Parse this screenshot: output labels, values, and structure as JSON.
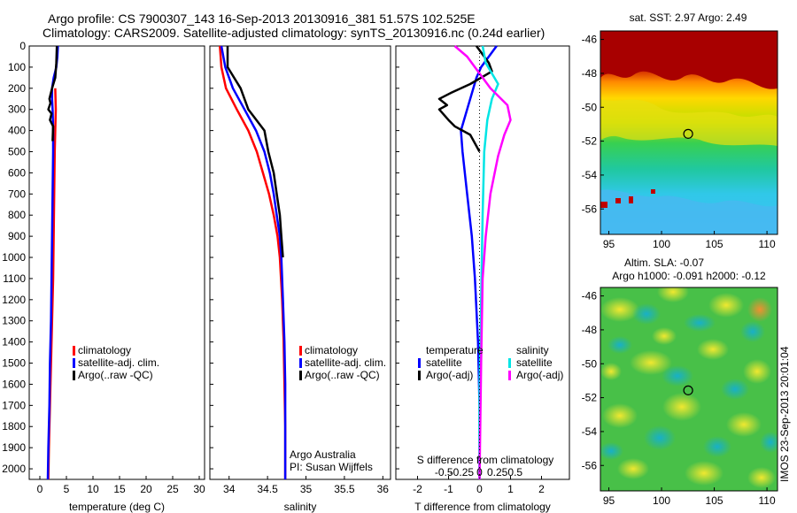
{
  "header": {
    "line1": "Argo profile: CS 7900307_143 16-Sep-2013 20130916_381 51.57S 102.525E",
    "line2": "Climatology: CARS2009. Satellite-adjusted climatology: synTS_20130916.nc (0.24d earlier)"
  },
  "colors": {
    "climatology": "#ff0000",
    "satellite": "#0000ff",
    "argo": "#000000",
    "satellite_salinity": "#00e5e5",
    "argo_salinity": "#ff00ff"
  },
  "chart_data": [
    {
      "type": "line",
      "id": "temperature",
      "xlabel": "temperature (deg C)",
      "xlim": [
        -2,
        31
      ],
      "xticks": [
        "0",
        "5",
        "10",
        "15",
        "20",
        "25",
        "30"
      ],
      "ylim": [
        0,
        2050
      ],
      "yticks": [
        "0",
        "100",
        "200",
        "300",
        "400",
        "500",
        "600",
        "700",
        "800",
        "900",
        "1000",
        "1100",
        "1200",
        "1300",
        "1400",
        "1500",
        "1600",
        "1700",
        "1800",
        "1900",
        "2000"
      ],
      "legend": [
        "climatology",
        "satellite-adj. clim.",
        "Argo(..raw -QC)"
      ],
      "series": [
        {
          "name": "climatology",
          "color": "climatology",
          "points": [
            [
              2.9,
              200
            ],
            [
              3.0,
              300
            ],
            [
              2.9,
              400
            ],
            [
              2.8,
              500
            ],
            [
              2.7,
              700
            ],
            [
              2.6,
              900
            ],
            [
              2.5,
              1100
            ],
            [
              2.3,
              1300
            ],
            [
              2.1,
              1500
            ],
            [
              1.9,
              1700
            ],
            [
              1.7,
              1900
            ],
            [
              1.6,
              2050
            ]
          ]
        },
        {
          "name": "satellite-adj. clim.",
          "color": "satellite",
          "points": [
            [
              3.4,
              0
            ],
            [
              3.3,
              50
            ],
            [
              3.1,
              100
            ],
            [
              2.6,
              150
            ],
            [
              2.3,
              200
            ],
            [
              2.3,
              250
            ],
            [
              2.4,
              300
            ],
            [
              2.5,
              400
            ],
            [
              2.5,
              500
            ],
            [
              2.4,
              700
            ],
            [
              2.3,
              900
            ],
            [
              2.2,
              1100
            ],
            [
              2.1,
              1300
            ],
            [
              1.9,
              1500
            ],
            [
              1.8,
              1700
            ],
            [
              1.6,
              1900
            ],
            [
              1.5,
              2050
            ]
          ]
        },
        {
          "name": "Argo(..raw -QC)",
          "color": "argo",
          "points": [
            [
              3.2,
              0
            ],
            [
              3.1,
              80
            ],
            [
              2.9,
              150
            ],
            [
              2.3,
              200
            ],
            [
              1.8,
              250
            ],
            [
              2.0,
              270
            ],
            [
              1.6,
              300
            ],
            [
              2.2,
              320
            ],
            [
              1.9,
              350
            ],
            [
              2.5,
              380
            ],
            [
              2.4,
              450
            ]
          ]
        }
      ]
    },
    {
      "type": "line",
      "id": "salinity",
      "xlabel": "salinity",
      "xlim": [
        33.75,
        36.1
      ],
      "xticks": [
        "34",
        "34.5",
        "35",
        "35.5",
        "36"
      ],
      "ylim": [
        0,
        2050
      ],
      "legend": [
        "climatology",
        "satellite-adj. clim.",
        "Argo(..raw -QC)"
      ],
      "annotation": [
        "Argo Australia",
        "PI: Susan Wijffels"
      ],
      "series": [
        {
          "name": "climatology",
          "color": "climatology",
          "points": [
            [
              33.88,
              0
            ],
            [
              33.9,
              100
            ],
            [
              33.96,
              200
            ],
            [
              34.1,
              300
            ],
            [
              34.25,
              400
            ],
            [
              34.36,
              500
            ],
            [
              34.44,
              600
            ],
            [
              34.52,
              700
            ],
            [
              34.58,
              800
            ],
            [
              34.63,
              900
            ],
            [
              34.66,
              1000
            ],
            [
              34.69,
              1200
            ],
            [
              34.71,
              1400
            ],
            [
              34.72,
              1600
            ],
            [
              34.73,
              1800
            ],
            [
              34.73,
              2050
            ]
          ]
        },
        {
          "name": "satellite-adj. clim.",
          "color": "satellite",
          "points": [
            [
              33.9,
              0
            ],
            [
              33.95,
              100
            ],
            [
              34.05,
              200
            ],
            [
              34.2,
              300
            ],
            [
              34.35,
              400
            ],
            [
              34.46,
              500
            ],
            [
              34.53,
              600
            ],
            [
              34.58,
              700
            ],
            [
              34.62,
              800
            ],
            [
              34.66,
              900
            ],
            [
              34.68,
              1000
            ],
            [
              34.7,
              1200
            ],
            [
              34.72,
              1400
            ],
            [
              34.73,
              1600
            ],
            [
              34.73,
              1800
            ],
            [
              34.73,
              2050
            ]
          ]
        },
        {
          "name": "Argo(..raw -QC)",
          "color": "argo",
          "points": [
            [
              33.98,
              0
            ],
            [
              33.98,
              100
            ],
            [
              34.15,
              200
            ],
            [
              34.25,
              300
            ],
            [
              34.46,
              400
            ],
            [
              34.51,
              500
            ],
            [
              34.58,
              600
            ],
            [
              34.62,
              700
            ],
            [
              34.66,
              800
            ],
            [
              34.68,
              900
            ],
            [
              34.7,
              1000
            ]
          ]
        }
      ]
    },
    {
      "type": "line",
      "id": "difference",
      "xlabel": "T difference from climatology",
      "xlabel_top": "S difference from climatology",
      "xlim": [
        -2.7,
        2.9
      ],
      "xticks": [
        "-2",
        "-1",
        "0",
        "1",
        "2"
      ],
      "xticks_top": [
        "-0.5",
        "-0.25",
        "0",
        "0.25",
        "0.5"
      ],
      "ylim": [
        0,
        2050
      ],
      "legend_temperature": [
        "temperature",
        "satellite",
        "Argo(-adj)"
      ],
      "legend_salinity": [
        "salinity",
        "satellite",
        "Argo(-adj)"
      ],
      "series": [
        {
          "name": "temperature satellite",
          "color": "satellite",
          "points": [
            [
              0.55,
              0
            ],
            [
              0.3,
              50
            ],
            [
              0.05,
              100
            ],
            [
              -0.1,
              150
            ],
            [
              -0.2,
              200
            ],
            [
              -0.4,
              300
            ],
            [
              -0.6,
              400
            ],
            [
              -0.55,
              500
            ],
            [
              -0.4,
              700
            ],
            [
              -0.25,
              900
            ],
            [
              -0.15,
              1100
            ],
            [
              -0.05,
              1400
            ],
            [
              0.0,
              1700
            ],
            [
              0.0,
              2050
            ]
          ]
        },
        {
          "name": "temperature Argo(-adj)",
          "color": "argo",
          "points": [
            [
              -0.1,
              0
            ],
            [
              0.3,
              80
            ],
            [
              0.4,
              120
            ],
            [
              -0.3,
              180
            ],
            [
              -0.9,
              220
            ],
            [
              -1.3,
              250
            ],
            [
              -1.05,
              280
            ],
            [
              -1.3,
              300
            ],
            [
              -1.0,
              350
            ],
            [
              -0.8,
              380
            ],
            [
              -0.3,
              420
            ],
            [
              0.0,
              500
            ]
          ]
        },
        {
          "name": "salinity satellite",
          "color": "satellite_salinity",
          "points": [
            [
              0.1,
              0
            ],
            [
              0.2,
              80
            ],
            [
              0.6,
              180
            ],
            [
              0.4,
              250
            ],
            [
              0.25,
              350
            ],
            [
              0.15,
              500
            ],
            [
              0.1,
              800
            ],
            [
              0.05,
              1200
            ],
            [
              0.0,
              1600
            ],
            [
              0.0,
              2050
            ]
          ]
        },
        {
          "name": "salinity Argo(-adj)",
          "color": "argo_salinity",
          "points": [
            [
              -0.8,
              0
            ],
            [
              -0.4,
              50
            ],
            [
              0.35,
              200
            ],
            [
              0.9,
              280
            ],
            [
              1.0,
              350
            ],
            [
              0.8,
              420
            ],
            [
              0.6,
              520
            ],
            [
              0.35,
              700
            ],
            [
              0.2,
              900
            ],
            [
              0.1,
              1100
            ],
            [
              0.05,
              1500
            ],
            [
              0.0,
              2050
            ]
          ]
        }
      ]
    }
  ],
  "maps": [
    {
      "id": "sst",
      "title": "sat. SST: 2.97  Argo: 2.49",
      "ylabels": [
        "-46",
        "-48",
        "-50",
        "-52",
        "-54",
        "-56"
      ],
      "xlabels": [
        "95",
        "100",
        "105",
        "110"
      ],
      "marker": {
        "lon": 102.525,
        "lat": -51.57
      },
      "lon_range": [
        94.2,
        111
      ],
      "lat_range": [
        -45.5,
        -57.5
      ]
    },
    {
      "id": "sla",
      "title_line1": "Altim. SLA: -0.07",
      "title_line2": "Argo h1000: -0.091 h2000: -0.12",
      "ylabels": [
        "-46",
        "-48",
        "-50",
        "-52",
        "-54",
        "-56"
      ],
      "xlabels": [
        "95",
        "100",
        "105",
        "110"
      ],
      "marker": {
        "lon": 102.525,
        "lat": -51.57
      },
      "lon_range": [
        94.2,
        111
      ],
      "lat_range": [
        -45.5,
        -57.5
      ]
    }
  ],
  "side_label": "IMOS 23-Sep-2013 20:01:04"
}
